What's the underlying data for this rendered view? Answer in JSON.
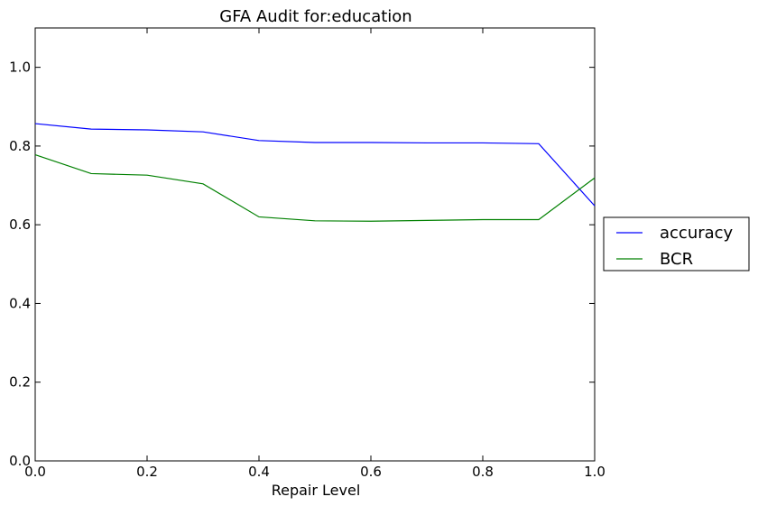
{
  "chart_data": {
    "type": "line",
    "title": "GFA Audit for:education",
    "xlabel": "Repair Level",
    "ylabel": "",
    "xlim": [
      0.0,
      1.0
    ],
    "ylim": [
      0.0,
      1.1
    ],
    "x_ticks": [
      0.0,
      0.2,
      0.4,
      0.6,
      0.8,
      1.0
    ],
    "x_tick_labels": [
      "0.0",
      "0.2",
      "0.4",
      "0.6",
      "0.8",
      "1.0"
    ],
    "y_ticks": [
      0.0,
      0.2,
      0.4,
      0.6,
      0.8,
      1.0
    ],
    "y_tick_labels": [
      "0.0",
      "0.2",
      "0.4",
      "0.6",
      "0.8",
      "1.0"
    ],
    "grid": false,
    "legend_position": "outside-right",
    "x": [
      0.0,
      0.1,
      0.2,
      0.3,
      0.4,
      0.5,
      0.6,
      0.7,
      0.8,
      0.9,
      1.0
    ],
    "series": [
      {
        "name": "accuracy",
        "color": "#0000ff",
        "values": [
          0.857,
          0.843,
          0.841,
          0.836,
          0.814,
          0.809,
          0.809,
          0.808,
          0.808,
          0.806,
          0.648
        ]
      },
      {
        "name": "BCR",
        "color": "#008000",
        "values": [
          0.778,
          0.73,
          0.726,
          0.704,
          0.62,
          0.61,
          0.609,
          0.611,
          0.613,
          0.613,
          0.719
        ]
      }
    ]
  }
}
